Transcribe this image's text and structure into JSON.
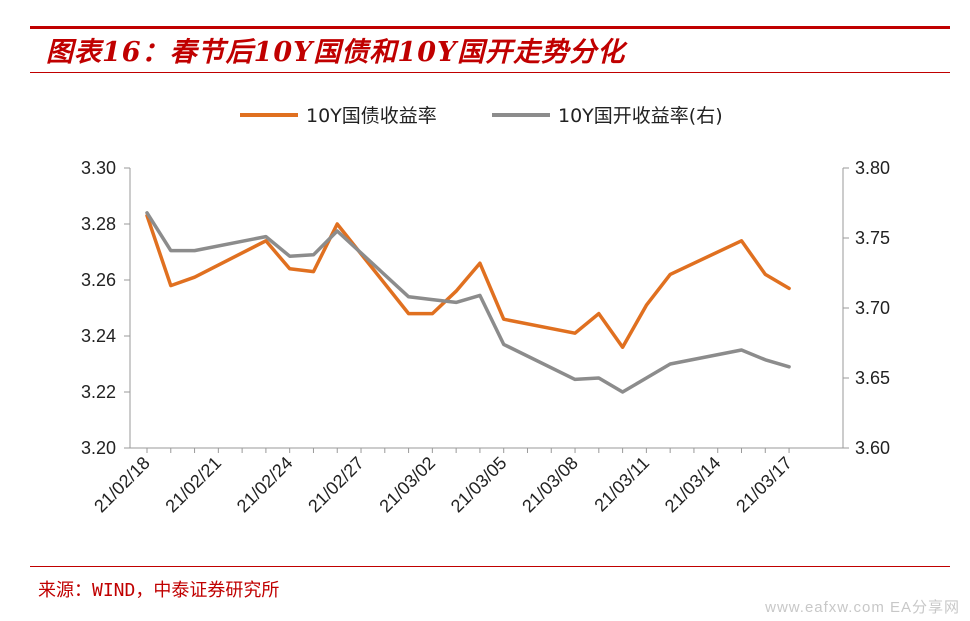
{
  "header": {
    "title": "图表16：春节后10Y国债和10Y国开走势分化"
  },
  "footer": {
    "source": "来源：WIND，中泰证券研究所",
    "watermark": "www.eafxw.com  EA分享网"
  },
  "colors": {
    "accent": "#c00000",
    "series_gov": "#e07020",
    "series_cdb": "#8c8c8c"
  },
  "chart_data": {
    "type": "line",
    "title": "",
    "xlabel": "",
    "ylabel": "",
    "grid": false,
    "legend": "top-center",
    "x": [
      "21/02/18",
      "21/02/19",
      "21/02/20",
      "21/02/21",
      "21/02/22",
      "21/02/23",
      "21/02/24",
      "21/02/25",
      "21/02/26",
      "21/02/27",
      "21/02/28",
      "21/03/01",
      "21/03/02",
      "21/03/03",
      "21/03/04",
      "21/03/05",
      "21/03/06",
      "21/03/07",
      "21/03/08",
      "21/03/09",
      "21/03/10",
      "21/03/11",
      "21/03/12",
      "21/03/13",
      "21/03/14",
      "21/03/15",
      "21/03/16",
      "21/03/17"
    ],
    "x_tick_labels": [
      "21/02/18",
      "21/02/21",
      "21/02/24",
      "21/02/27",
      "21/03/02",
      "21/03/05",
      "21/03/08",
      "21/03/11",
      "21/03/14",
      "21/03/17"
    ],
    "y_left": {
      "min": 3.2,
      "max": 3.3,
      "ticks": [
        "3.20",
        "3.22",
        "3.24",
        "3.26",
        "3.28",
        "3.30"
      ]
    },
    "y_right": {
      "min": 3.6,
      "max": 3.8,
      "ticks": [
        "3.60",
        "3.65",
        "3.70",
        "3.75",
        "3.80"
      ]
    },
    "series": [
      {
        "name": "10Y国债收益率",
        "axis": "left",
        "points": [
          [
            "21/02/18",
            3.283
          ],
          [
            "21/02/19",
            3.258
          ],
          [
            "21/02/20",
            3.261
          ],
          [
            "21/02/23",
            3.274
          ],
          [
            "21/02/24",
            3.264
          ],
          [
            "21/02/25",
            3.263
          ],
          [
            "21/02/26",
            3.28
          ],
          [
            "21/03/01",
            3.248
          ],
          [
            "21/03/02",
            3.248
          ],
          [
            "21/03/03",
            3.256
          ],
          [
            "21/03/04",
            3.266
          ],
          [
            "21/03/05",
            3.246
          ],
          [
            "21/03/08",
            3.241
          ],
          [
            "21/03/09",
            3.248
          ],
          [
            "21/03/10",
            3.236
          ],
          [
            "21/03/11",
            3.251
          ],
          [
            "21/03/12",
            3.262
          ],
          [
            "21/03/15",
            3.274
          ],
          [
            "21/03/16",
            3.262
          ],
          [
            "21/03/17",
            3.257
          ]
        ]
      },
      {
        "name": "10Y国开收益率(右)",
        "axis": "right",
        "points": [
          [
            "21/02/18",
            3.768
          ],
          [
            "21/02/19",
            3.741
          ],
          [
            "21/02/20",
            3.741
          ],
          [
            "21/02/23",
            3.751
          ],
          [
            "21/02/24",
            3.737
          ],
          [
            "21/02/25",
            3.738
          ],
          [
            "21/02/26",
            3.755
          ],
          [
            "21/03/01",
            3.708
          ],
          [
            "21/03/02",
            3.706
          ],
          [
            "21/03/03",
            3.704
          ],
          [
            "21/03/04",
            3.709
          ],
          [
            "21/03/05",
            3.674
          ],
          [
            "21/03/08",
            3.649
          ],
          [
            "21/03/09",
            3.65
          ],
          [
            "21/03/10",
            3.64
          ],
          [
            "21/03/11",
            3.65
          ],
          [
            "21/03/12",
            3.66
          ],
          [
            "21/03/15",
            3.67
          ],
          [
            "21/03/16",
            3.663
          ],
          [
            "21/03/17",
            3.658
          ]
        ]
      }
    ]
  }
}
